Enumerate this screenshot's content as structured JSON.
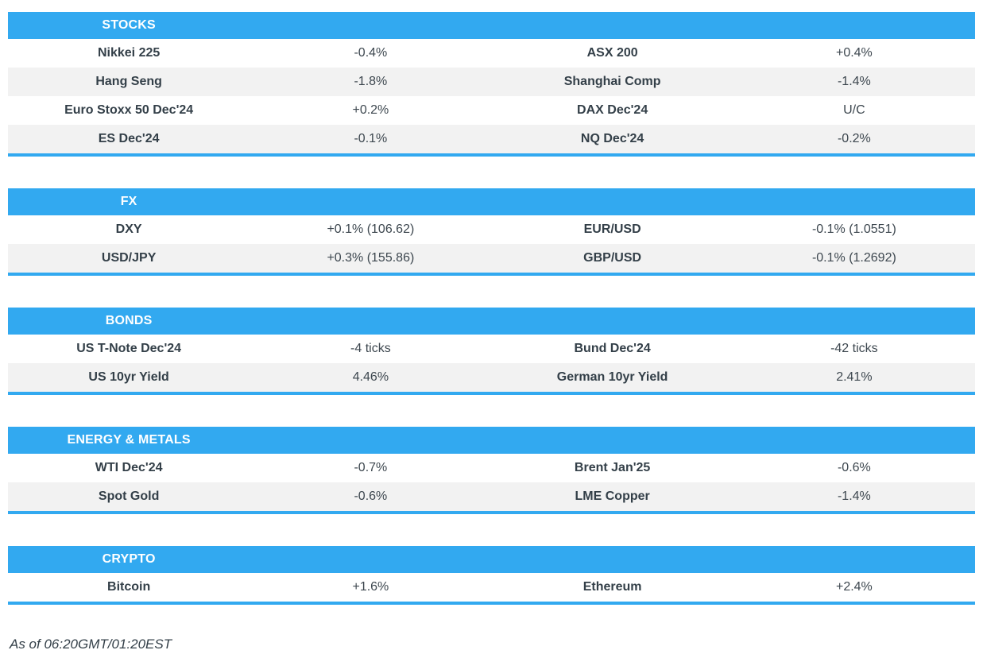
{
  "colors": {
    "accent": "#32a9f0",
    "row_alt": "#f2f2f2",
    "text": "#333f48"
  },
  "sections": [
    {
      "title": "STOCKS",
      "rows": [
        [
          "Nikkei 225",
          "-0.4%",
          "ASX 200",
          "+0.4%"
        ],
        [
          "Hang Seng",
          "-1.8%",
          "Shanghai Comp",
          "-1.4%"
        ],
        [
          "Euro Stoxx 50 Dec'24",
          "+0.2%",
          "DAX Dec'24",
          "U/C"
        ],
        [
          "ES Dec'24",
          "-0.1%",
          "NQ Dec'24",
          "-0.2%"
        ]
      ]
    },
    {
      "title": "FX",
      "rows": [
        [
          "DXY",
          "+0.1% (106.62)",
          "EUR/USD",
          "-0.1% (1.0551)"
        ],
        [
          "USD/JPY",
          "+0.3% (155.86)",
          "GBP/USD",
          "-0.1% (1.2692)"
        ]
      ]
    },
    {
      "title": "BONDS",
      "rows": [
        [
          "US T-Note Dec'24",
          "-4 ticks",
          "Bund Dec'24",
          "-42 ticks"
        ],
        [
          "US 10yr Yield",
          "4.46%",
          "German 10yr Yield",
          "2.41%"
        ]
      ]
    },
    {
      "title": "ENERGY & METALS",
      "rows": [
        [
          "WTI Dec'24",
          "-0.7%",
          "Brent Jan'25",
          "-0.6%"
        ],
        [
          "Spot Gold",
          "-0.6%",
          "LME Copper",
          "-1.4%"
        ]
      ]
    },
    {
      "title": "CRYPTO",
      "rows": [
        [
          "Bitcoin",
          "+1.6%",
          "Ethereum",
          "+2.4%"
        ]
      ]
    }
  ],
  "footer": {
    "timestamp": "As of 06:20GMT/01:20EST"
  }
}
